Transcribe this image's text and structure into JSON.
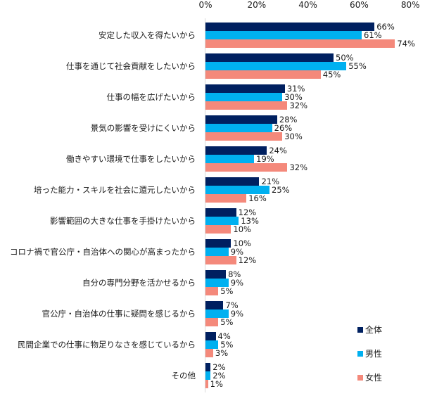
{
  "chart_data": {
    "type": "bar",
    "orientation": "horizontal",
    "title": "",
    "xlabel": "",
    "ylabel": "",
    "xlim": [
      0,
      80
    ],
    "x_ticks": [
      "0%",
      "20%",
      "40%",
      "60%",
      "80%"
    ],
    "grid": false,
    "legend_position": "bottom-right",
    "categories": [
      "安定した収入を得たいから",
      "仕事を通じて社会貢献をしたいから",
      "仕事の幅を広げたいから",
      "景気の影響を受けにくいから",
      "働きやすい環境で仕事をしたいから",
      "培った能力・スキルを社会に還元したいから",
      "影響範囲の大きな仕事を手掛けたいから",
      "コロナ禍で官公庁・自治体への関心が高まったから",
      "自分の専門分野を活かせるから",
      "官公庁・自治体の仕事に疑問を感じるから",
      "民間企業での仕事に物足りなさを感じているから",
      "その他"
    ],
    "series": [
      {
        "name": "全体",
        "color": "#002060",
        "values": [
          66,
          50,
          31,
          28,
          24,
          21,
          12,
          10,
          8,
          7,
          4,
          2
        ]
      },
      {
        "name": "男性",
        "color": "#00B0F0",
        "values": [
          61,
          55,
          30,
          26,
          19,
          25,
          13,
          9,
          9,
          9,
          5,
          2
        ]
      },
      {
        "name": "女性",
        "color": "#F4897B",
        "values": [
          74,
          45,
          32,
          30,
          32,
          16,
          10,
          12,
          5,
          5,
          3,
          1
        ]
      }
    ],
    "value_suffix": "%"
  }
}
